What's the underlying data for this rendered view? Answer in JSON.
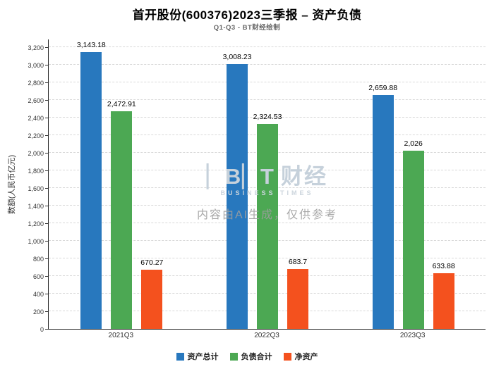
{
  "header": {
    "title": "首开股份(600376)2023三季报 – 资产负债",
    "subtitle": "Q1-Q3 - BT财经绘制"
  },
  "watermark": {
    "logo_bt": "▏B▏T",
    "logo_cn": "财经",
    "logo_sub": "BUSINESS TIMES",
    "disclaimer": "内容由AI生成，仅供参考"
  },
  "chart_data": {
    "type": "bar",
    "title": "首开股份(600376)2023三季报 – 资产负债",
    "subtitle": "Q1-Q3 - BT财经绘制",
    "ylabel": "数额(人民币亿元)",
    "categories": [
      "2021Q3",
      "2022Q3",
      "2023Q3"
    ],
    "series": [
      {
        "key": "total-assets",
        "name": "资产总计",
        "color": "#2878BE",
        "values": [
          3143.18,
          3008.23,
          2659.88
        ],
        "labels": [
          "3,143.18",
          "3,008.23",
          "2,659.88"
        ]
      },
      {
        "key": "total-liabilities",
        "name": "负债合计",
        "color": "#4CA853",
        "values": [
          2472.91,
          2324.53,
          2026
        ],
        "labels": [
          "2,472.91",
          "2,324.53",
          "2,026"
        ]
      },
      {
        "key": "net-assets",
        "name": "净资产",
        "color": "#F4511E",
        "values": [
          670.27,
          683.7,
          633.88
        ],
        "labels": [
          "670.27",
          "683.7",
          "633.88"
        ]
      }
    ],
    "ylim": [
      0,
      3200
    ],
    "ytick_step": 200,
    "grid": true,
    "legend_position": "bottom"
  }
}
